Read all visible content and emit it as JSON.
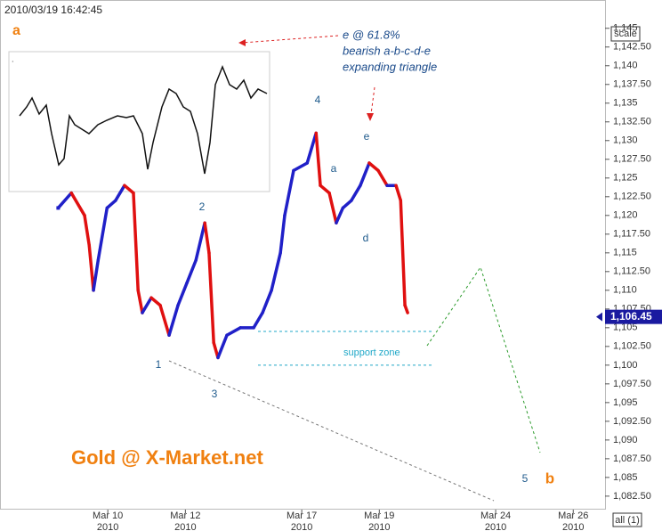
{
  "chart_data": {
    "type": "line",
    "timestamp": "2010/03/19 16:42:45",
    "corner_label": "a",
    "note_lines": [
      "e @ 61.8%",
      "bearish a-b-c-d-e",
      "expanding triangle"
    ],
    "support_label": "support zone",
    "support_zone": [
      1100,
      1104.5
    ],
    "watermark": "Gold @ X-Market.net",
    "scale_button": "scale",
    "all_button": "all (1)",
    "last_price": 1106.45,
    "last_price_label": "1,106.45",
    "wave_labels": [
      "1",
      "2",
      "3",
      "4",
      "5",
      "a",
      "d",
      "e",
      "b"
    ],
    "up_color": "#2020c8",
    "down_color": "#e01010",
    "x": [
      -1.28,
      -0.94,
      -0.6,
      -0.48,
      -0.37,
      -0.25,
      -0.02,
      0.2,
      0.43,
      0.66,
      0.78,
      0.89,
      1.12,
      1.35,
      1.58,
      1.81,
      2.04,
      2.27,
      2.5,
      2.61,
      2.73,
      2.84,
      3.07,
      3.42,
      3.76,
      3.99,
      4.22,
      4.45,
      4.56,
      4.79,
      5.14,
      5.37,
      5.48,
      5.71,
      5.89,
      6.06,
      6.28,
      6.51,
      6.74,
      6.97,
      7.2,
      7.43,
      7.55,
      7.66,
      7.73
    ],
    "values": [
      1121,
      1123,
      1120,
      1116,
      1110,
      1114,
      1121,
      1122,
      1124,
      1123,
      1110,
      1107,
      1109,
      1108,
      1104,
      1108,
      1111,
      1114,
      1119,
      1115,
      1103,
      1101,
      1104,
      1105,
      1105,
      1107,
      1110,
      1115,
      1120,
      1126,
      1127,
      1131,
      1124,
      1123,
      1119,
      1121,
      1122,
      1124,
      1127,
      1126,
      1124,
      1124,
      1122,
      1108,
      1107
    ],
    "xlim": [
      -2.78,
      12.82
    ],
    "xticks": [
      {
        "value": 0,
        "label": "Mar 10",
        "sublabel": "2010"
      },
      {
        "value": 2,
        "label": "Mar 12",
        "sublabel": "2010"
      },
      {
        "value": 5,
        "label": "Mar 17",
        "sublabel": "2010"
      },
      {
        "value": 7,
        "label": "Mar 19",
        "sublabel": "2010"
      },
      {
        "value": 10,
        "label": "Mar 24",
        "sublabel": "2010"
      },
      {
        "value": 12,
        "label": "Mar 26",
        "sublabel": "2010"
      }
    ],
    "ylim": [
      1080.7,
      1146.4
    ],
    "yticks": [
      {
        "value": 1082.5,
        "label": "1,082.50"
      },
      {
        "value": 1085,
        "label": "1,085"
      },
      {
        "value": 1087.5,
        "label": "1,087.50"
      },
      {
        "value": 1090,
        "label": "1,090"
      },
      {
        "value": 1092.5,
        "label": "1,092.50"
      },
      {
        "value": 1095,
        "label": "1,095"
      },
      {
        "value": 1097.5,
        "label": "1,097.50"
      },
      {
        "value": 1100,
        "label": "1,100"
      },
      {
        "value": 1102.5,
        "label": "1,102.50"
      },
      {
        "value": 1105,
        "label": "1,105"
      },
      {
        "value": 1107.5,
        "label": "1,107.50"
      },
      {
        "value": 1110,
        "label": "1,110"
      },
      {
        "value": 1112.5,
        "label": "1,112.50"
      },
      {
        "value": 1115,
        "label": "1,115"
      },
      {
        "value": 1117.5,
        "label": "1,117.50"
      },
      {
        "value": 1120,
        "label": "1,120"
      },
      {
        "value": 1122.5,
        "label": "1,122.50"
      },
      {
        "value": 1125,
        "label": "1,125"
      },
      {
        "value": 1127.5,
        "label": "1,127.50"
      },
      {
        "value": 1130,
        "label": "1,130"
      },
      {
        "value": 1132.5,
        "label": "1,132.50"
      },
      {
        "value": 1135,
        "label": "1,135"
      },
      {
        "value": 1137.5,
        "label": "1,137.50"
      },
      {
        "value": 1140,
        "label": "1,140"
      },
      {
        "value": 1142.5,
        "label": "1,142.50"
      },
      {
        "value": 1145,
        "label": "1,145"
      }
    ]
  }
}
